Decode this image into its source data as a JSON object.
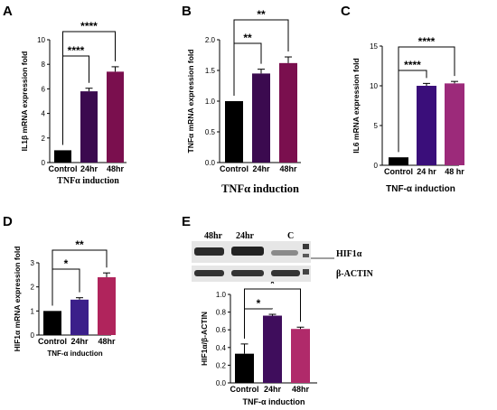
{
  "chart_data": [
    {
      "panel": "A",
      "type": "bar",
      "categories": [
        "Control",
        "24hr",
        "48hr"
      ],
      "values": [
        1.0,
        5.8,
        7.4
      ],
      "errors": [
        0.0,
        0.25,
        0.4
      ],
      "colors": [
        "#000000",
        "#3b0a4f",
        "#7a0f4e"
      ],
      "xlabel": "TNFα induction",
      "ylabel": "IL1β mRNA expression fold",
      "ylim": [
        0,
        10
      ],
      "yticks": [
        "0",
        "2",
        "4",
        "6",
        "8",
        "10"
      ],
      "significance": [
        {
          "from": 0,
          "to": 1,
          "label": "****"
        },
        {
          "from": 0,
          "to": 2,
          "label": "****"
        }
      ]
    },
    {
      "panel": "B",
      "type": "bar",
      "categories": [
        "Control",
        "24hr",
        "48hr"
      ],
      "values": [
        1.0,
        1.45,
        1.62
      ],
      "errors": [
        0.0,
        0.07,
        0.1
      ],
      "colors": [
        "#000000",
        "#3b0a4f",
        "#7a0f4e"
      ],
      "xlabel": "TNFα induction",
      "ylabel": "TNFα mRNA expression fold",
      "ylim": [
        0,
        2.0
      ],
      "yticks": [
        "0.0",
        "0.5",
        "1.0",
        "1.5",
        "2.0"
      ],
      "significance": [
        {
          "from": 0,
          "to": 1,
          "label": "**"
        },
        {
          "from": 0,
          "to": 2,
          "label": "**"
        }
      ]
    },
    {
      "panel": "C",
      "type": "bar",
      "categories": [
        "Control",
        "24 hr",
        "48 hr"
      ],
      "values": [
        1.0,
        10.0,
        10.3
      ],
      "errors": [
        0.0,
        0.3,
        0.25
      ],
      "colors": [
        "#000000",
        "#3a0e7a",
        "#9c2a7a"
      ],
      "xlabel": "TNF-α induction",
      "ylabel": "IL6 mRNA expression fold",
      "ylim": [
        0,
        15
      ],
      "yticks": [
        "0",
        "5",
        "10",
        "15"
      ],
      "significance": [
        {
          "from": 0,
          "to": 1,
          "label": "****"
        },
        {
          "from": 0,
          "to": 2,
          "label": "****"
        }
      ]
    },
    {
      "panel": "D",
      "type": "bar",
      "categories": [
        "Control",
        "24hr",
        "48hr"
      ],
      "values": [
        1.0,
        1.47,
        2.4
      ],
      "errors": [
        0.0,
        0.08,
        0.18
      ],
      "colors": [
        "#000000",
        "#3b1f8a",
        "#b0245c"
      ],
      "xlabel": "TNF-α induction",
      "ylabel": "HIF1α mRNA expression fold",
      "ylim": [
        0,
        3
      ],
      "yticks": [
        "0",
        "1",
        "2",
        "3"
      ],
      "significance": [
        {
          "from": 0,
          "to": 1,
          "label": "*"
        },
        {
          "from": 0,
          "to": 2,
          "label": "**"
        }
      ]
    },
    {
      "panel": "E",
      "type": "bar",
      "categories": [
        "Control",
        "24hr",
        "48hr"
      ],
      "values": [
        0.33,
        0.76,
        0.61
      ],
      "errors": [
        0.11,
        0.015,
        0.02
      ],
      "colors": [
        "#000000",
        "#3f0d5c",
        "#b02a6a"
      ],
      "xlabel": "TNF-α induction",
      "ylabel": "HIF1α/β-ACTIN",
      "ylim": [
        0,
        1.0
      ],
      "yticks": [
        "0.0",
        "0.2",
        "0.4",
        "0.6",
        "0.8",
        "1.0"
      ],
      "significance": [
        {
          "from": 0,
          "to": 1,
          "label": "*"
        },
        {
          "from": 0,
          "to": 2,
          "label": "*"
        }
      ]
    }
  ],
  "blot": {
    "lanes": [
      "48hr",
      "24hr",
      "C"
    ],
    "rows": [
      "HIF1α",
      "β-ACTIN"
    ]
  }
}
